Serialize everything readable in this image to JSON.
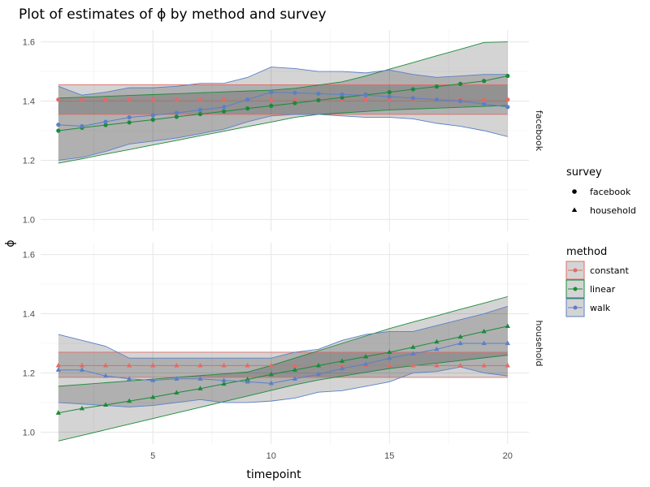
{
  "chart_data": {
    "type": "line",
    "title": "Plot of estimates of ϕ by method and survey",
    "xlabel": "timepoint",
    "ylabel": "ϕ",
    "x_ticks": [
      "5",
      "10",
      "15",
      "20"
    ],
    "y_ticks": [
      "1.0",
      "1.2",
      "1.4",
      "1.6"
    ],
    "xlim": [
      0.25,
      20.9
    ],
    "ylim": [
      0.96,
      1.64
    ],
    "grid": true,
    "facets": [
      "facebook",
      "household"
    ],
    "legend_placement": "right",
    "legend_survey": {
      "title": "survey",
      "entries": [
        {
          "label": "facebook",
          "shape": "circle"
        },
        {
          "label": "household",
          "shape": "triangle"
        }
      ]
    },
    "legend_method": {
      "title": "method",
      "entries": [
        {
          "label": "constant",
          "color": "#e06c66"
        },
        {
          "label": "linear",
          "color": "#1b8a3a"
        },
        {
          "label": "walk",
          "color": "#5b7fc7"
        }
      ]
    },
    "colors": {
      "constant": "#e06c66",
      "linear": "#1b8a3a",
      "walk": "#5b7fc7",
      "ribbon": "#000000"
    },
    "x": [
      1,
      2,
      3,
      4,
      5,
      6,
      7,
      8,
      9,
      10,
      11,
      12,
      13,
      14,
      15,
      16,
      17,
      18,
      19,
      20
    ],
    "panels": [
      {
        "survey": "facebook",
        "series": [
          {
            "name": "constant",
            "values": [
              1.405,
              1.405,
              1.405,
              1.405,
              1.405,
              1.405,
              1.405,
              1.405,
              1.405,
              1.405,
              1.405,
              1.405,
              1.405,
              1.405,
              1.405,
              1.405,
              1.405,
              1.405,
              1.405,
              1.405
            ],
            "lower": [
              1.355,
              1.355,
              1.355,
              1.355,
              1.355,
              1.355,
              1.355,
              1.355,
              1.355,
              1.355,
              1.355,
              1.355,
              1.355,
              1.355,
              1.355,
              1.355,
              1.355,
              1.355,
              1.355,
              1.355
            ],
            "upper": [
              1.455,
              1.455,
              1.455,
              1.455,
              1.455,
              1.455,
              1.455,
              1.455,
              1.455,
              1.455,
              1.455,
              1.455,
              1.455,
              1.455,
              1.455,
              1.455,
              1.455,
              1.455,
              1.455,
              1.455
            ]
          },
          {
            "name": "linear",
            "values": [
              1.3,
              1.31,
              1.319,
              1.328,
              1.337,
              1.347,
              1.356,
              1.365,
              1.375,
              1.384,
              1.393,
              1.403,
              1.412,
              1.421,
              1.43,
              1.44,
              1.449,
              1.458,
              1.468,
              1.485
            ],
            "lower": [
              1.19,
              1.205,
              1.221,
              1.236,
              1.252,
              1.267,
              1.283,
              1.298,
              1.314,
              1.329,
              1.345,
              1.355,
              1.36,
              1.365,
              1.37,
              1.373,
              1.376,
              1.379,
              1.382,
              1.385
            ],
            "upper": [
              1.41,
              1.413,
              1.416,
              1.419,
              1.422,
              1.425,
              1.428,
              1.431,
              1.434,
              1.437,
              1.443,
              1.454,
              1.465,
              1.485,
              1.508,
              1.53,
              1.553,
              1.575,
              1.598,
              1.6
            ]
          },
          {
            "name": "walk",
            "values": [
              1.32,
              1.315,
              1.33,
              1.345,
              1.352,
              1.36,
              1.37,
              1.38,
              1.405,
              1.43,
              1.428,
              1.425,
              1.422,
              1.42,
              1.415,
              1.41,
              1.405,
              1.4,
              1.39,
              1.38
            ],
            "lower": [
              1.2,
              1.21,
              1.23,
              1.255,
              1.265,
              1.275,
              1.29,
              1.305,
              1.33,
              1.35,
              1.355,
              1.355,
              1.35,
              1.345,
              1.345,
              1.34,
              1.325,
              1.315,
              1.3,
              1.28
            ],
            "upper": [
              1.45,
              1.42,
              1.43,
              1.445,
              1.445,
              1.45,
              1.46,
              1.46,
              1.48,
              1.515,
              1.51,
              1.5,
              1.5,
              1.495,
              1.505,
              1.49,
              1.48,
              1.485,
              1.49,
              1.49
            ]
          }
        ]
      },
      {
        "survey": "household",
        "series": [
          {
            "name": "constant",
            "values": [
              1.225,
              1.225,
              1.225,
              1.225,
              1.225,
              1.225,
              1.225,
              1.225,
              1.225,
              1.225,
              1.225,
              1.225,
              1.225,
              1.225,
              1.225,
              1.225,
              1.225,
              1.225,
              1.225,
              1.225
            ],
            "lower": [
              1.185,
              1.185,
              1.185,
              1.185,
              1.185,
              1.185,
              1.185,
              1.185,
              1.185,
              1.185,
              1.185,
              1.185,
              1.185,
              1.185,
              1.185,
              1.185,
              1.185,
              1.185,
              1.185,
              1.185
            ],
            "upper": [
              1.27,
              1.27,
              1.27,
              1.27,
              1.27,
              1.27,
              1.27,
              1.27,
              1.27,
              1.27,
              1.27,
              1.27,
              1.27,
              1.27,
              1.27,
              1.27,
              1.27,
              1.27,
              1.27,
              1.27
            ]
          },
          {
            "name": "linear",
            "values": [
              1.065,
              1.08,
              1.092,
              1.105,
              1.118,
              1.133,
              1.147,
              1.163,
              1.178,
              1.195,
              1.21,
              1.225,
              1.24,
              1.255,
              1.27,
              1.287,
              1.305,
              1.322,
              1.34,
              1.358
            ],
            "lower": [
              0.97,
              0.989,
              1.008,
              1.027,
              1.046,
              1.065,
              1.084,
              1.103,
              1.122,
              1.141,
              1.16,
              1.176,
              1.189,
              1.202,
              1.215,
              1.224,
              1.233,
              1.242,
              1.251,
              1.26
            ],
            "upper": [
              1.155,
              1.161,
              1.167,
              1.173,
              1.179,
              1.185,
              1.191,
              1.197,
              1.203,
              1.225,
              1.25,
              1.275,
              1.3,
              1.325,
              1.35,
              1.372,
              1.393,
              1.415,
              1.436,
              1.458
            ]
          },
          {
            "name": "walk",
            "values": [
              1.21,
              1.21,
              1.19,
              1.18,
              1.175,
              1.18,
              1.18,
              1.175,
              1.17,
              1.165,
              1.18,
              1.195,
              1.215,
              1.23,
              1.25,
              1.265,
              1.28,
              1.3,
              1.3,
              1.3
            ],
            "lower": [
              1.1,
              1.095,
              1.09,
              1.085,
              1.09,
              1.1,
              1.11,
              1.1,
              1.1,
              1.105,
              1.115,
              1.135,
              1.14,
              1.155,
              1.17,
              1.2,
              1.205,
              1.22,
              1.2,
              1.19
            ],
            "upper": [
              1.33,
              1.31,
              1.29,
              1.25,
              1.25,
              1.25,
              1.25,
              1.25,
              1.25,
              1.25,
              1.27,
              1.28,
              1.31,
              1.33,
              1.34,
              1.34,
              1.36,
              1.38,
              1.4,
              1.425
            ]
          }
        ]
      }
    ]
  }
}
